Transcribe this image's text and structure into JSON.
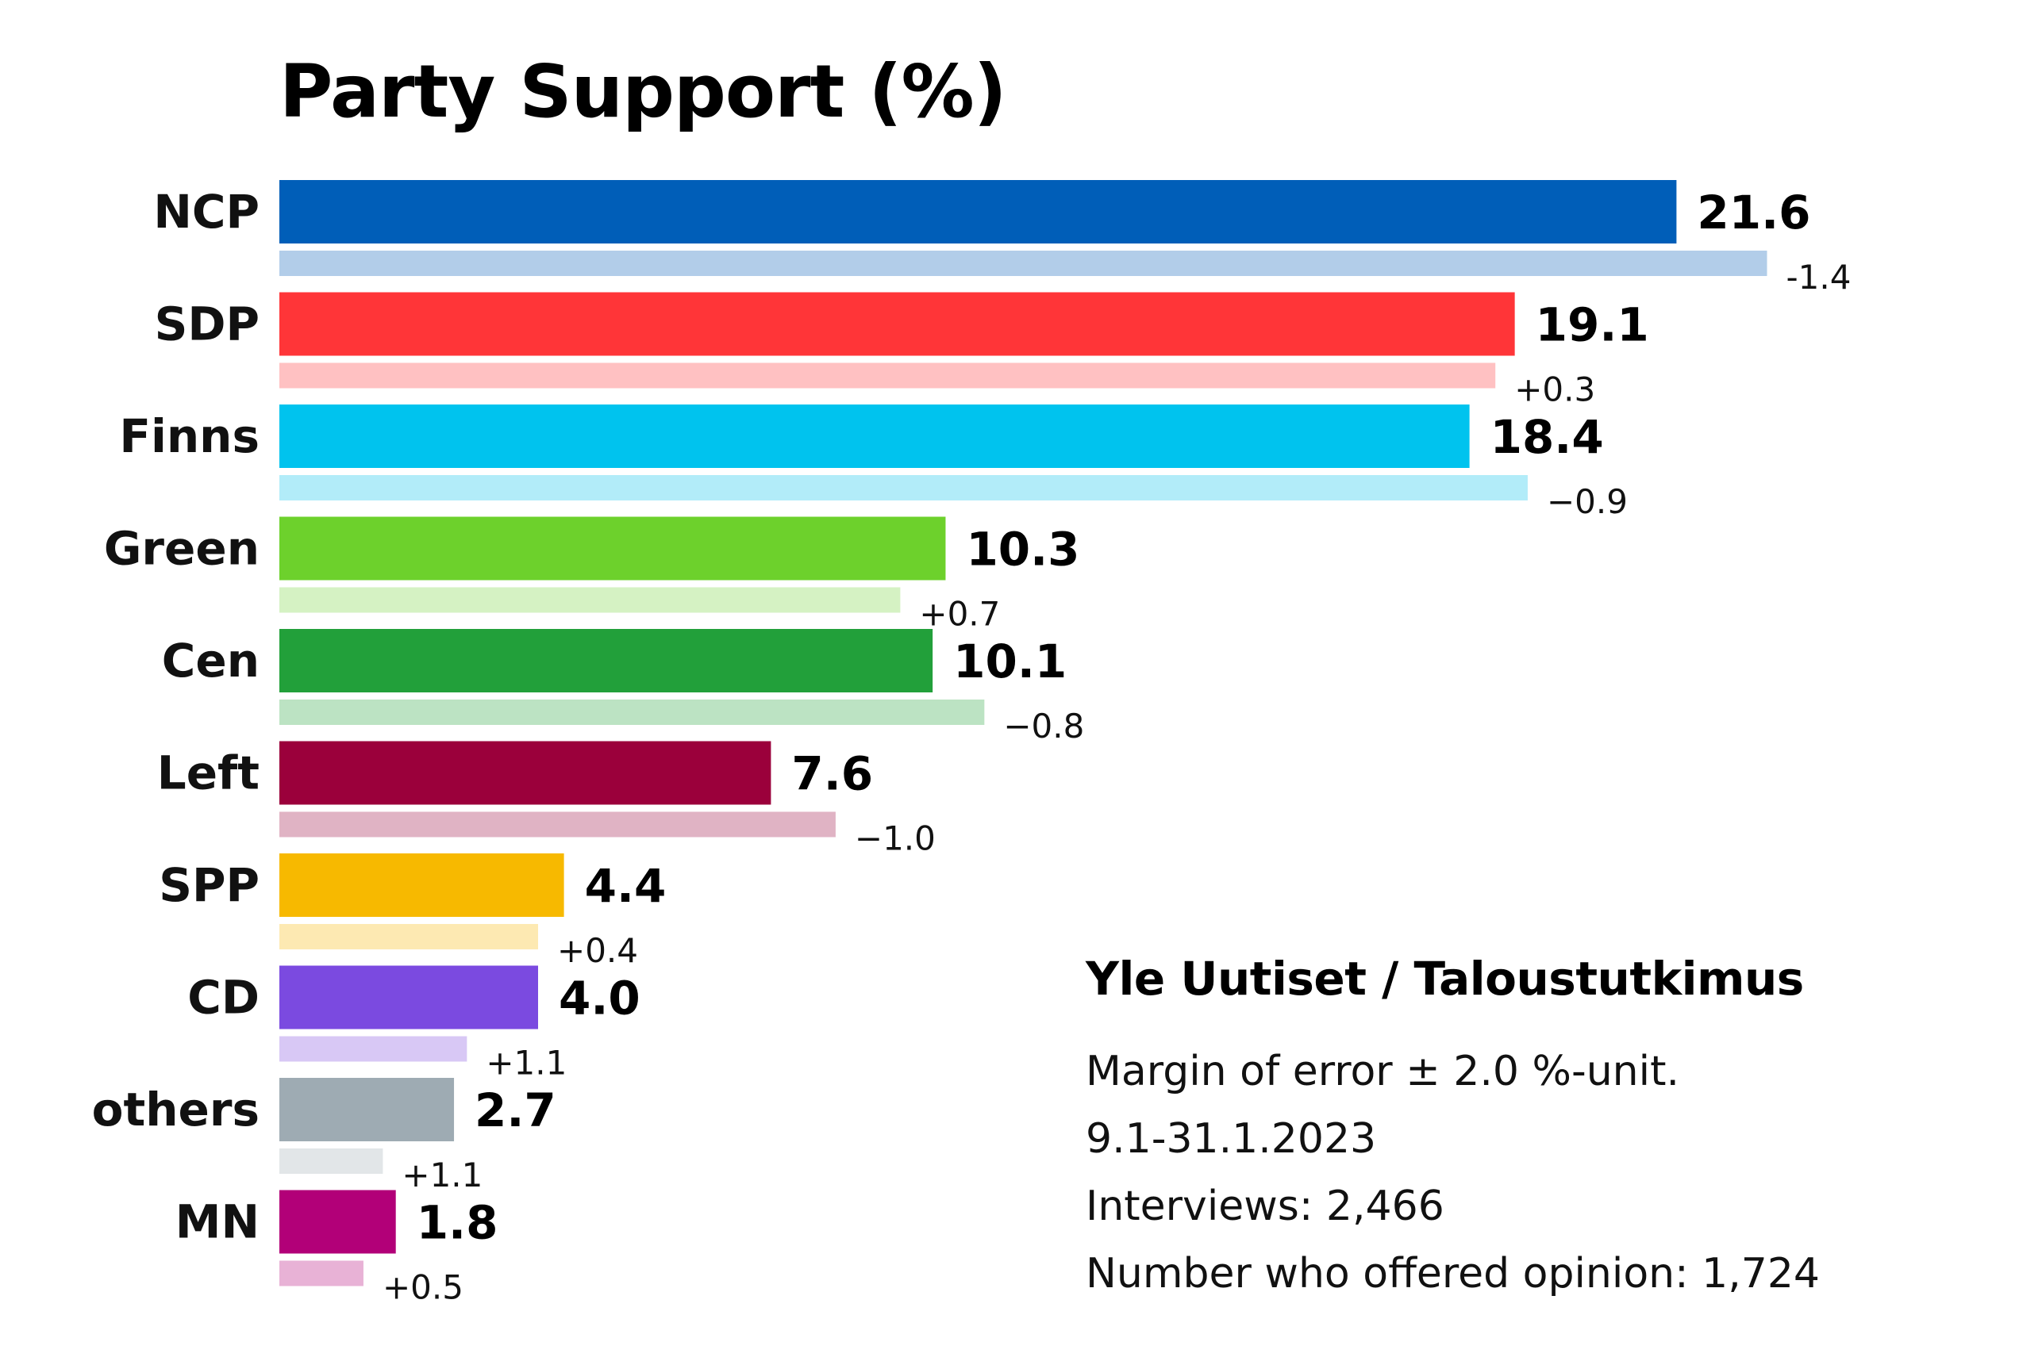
{
  "chart_data": {
    "type": "bar",
    "orientation": "horizontal",
    "title": "Party Support (%)",
    "categories": [
      "NCP",
      "SDP",
      "Finns",
      "Green",
      "Cen",
      "Left",
      "SPP",
      "CD",
      "others",
      "MN"
    ],
    "series": [
      {
        "values": [
          21.6,
          19.1,
          18.4,
          10.3,
          10.1,
          7.6,
          4.4,
          4.0,
          2.7,
          1.8
        ],
        "value_labels": [
          "21.6",
          "19.1",
          "18.4",
          "10.3",
          "10.1",
          "7.6",
          "4.4",
          "4.0",
          "2.7",
          "1.8"
        ]
      },
      {
        "values": [
          23.0,
          18.8,
          19.3,
          9.6,
          10.9,
          8.6,
          4.0,
          2.9,
          1.6,
          1.3
        ],
        "value_labels": [
          "-1.4",
          "+0.3",
          "−0.9",
          "+0.7",
          "−0.8",
          "−1.0",
          "+0.4",
          "+1.1",
          "+1.1",
          "+0.5"
        ]
      }
    ],
    "colors": [
      "#005eb8",
      "#ff3538",
      "#00c3ee",
      "#6dd12c",
      "#22a03a",
      "#9b003b",
      "#f7b900",
      "#7b4ae0",
      "#9eabb3",
      "#b20078"
    ],
    "prev_colors": [
      "#b2cde9",
      "#ffc1c2",
      "#b2ecf9",
      "#d5f2c3",
      "#bce3c3",
      "#e0b3c4",
      "#fde9b2",
      "#d8c8f5",
      "#e2e6e8",
      "#e8b2d6"
    ],
    "xlim": [
      0,
      25
    ],
    "grid": false,
    "legend": "none"
  },
  "info": {
    "source": "Yle Uutiset / Taloustutkimus",
    "lines": [
      "Margin of error ± 2.0 %-unit.",
      "9.1-31.1.2023",
      "Interviews: 2,466",
      "Number who offered opinion: 1,724"
    ]
  }
}
